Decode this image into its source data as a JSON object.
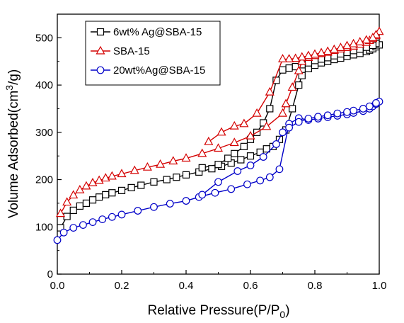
{
  "chart_data": {
    "type": "line",
    "xlabel_main": "Relative Pressure(P/P",
    "xlabel_sub": "0",
    "xlabel_close": ")",
    "ylabel_main": "Volume Adsorbed(cm",
    "ylabel_sup": "3",
    "ylabel_close": "/g)",
    "xlim": [
      0.0,
      1.0
    ],
    "ylim": [
      0,
      550
    ],
    "x_ticks": [
      "0.0",
      "0.2",
      "0.4",
      "0.6",
      "0.8",
      "1.0"
    ],
    "y_ticks": [
      "0",
      "100",
      "200",
      "300",
      "400",
      "500"
    ],
    "legend_position": "top-left",
    "series": [
      {
        "name": "6wt% Ag@SBA-15",
        "color": "#000000",
        "marker": "square",
        "x": [
          0.01,
          0.03,
          0.05,
          0.07,
          0.09,
          0.11,
          0.13,
          0.15,
          0.17,
          0.2,
          0.23,
          0.26,
          0.3,
          0.34,
          0.37,
          0.4,
          0.44,
          0.48,
          0.51,
          0.54,
          0.57,
          0.6,
          0.63,
          0.65,
          0.67,
          0.69,
          0.71,
          0.73,
          0.75,
          0.76,
          0.78,
          0.8,
          0.82,
          0.84,
          0.86,
          0.88,
          0.9,
          0.92,
          0.94,
          0.96,
          0.97,
          0.98,
          0.99,
          1.0,
          0.99,
          0.98,
          0.96,
          0.94,
          0.92,
          0.9,
          0.88,
          0.86,
          0.84,
          0.82,
          0.8,
          0.78,
          0.76,
          0.74,
          0.72,
          0.7,
          0.68,
          0.66,
          0.64,
          0.62,
          0.6,
          0.58,
          0.55,
          0.53,
          0.5,
          0.45
        ],
        "y": [
          98,
          122,
          135,
          144,
          150,
          157,
          163,
          168,
          172,
          177,
          183,
          188,
          195,
          200,
          205,
          210,
          216,
          223,
          228,
          235,
          242,
          250,
          258,
          265,
          270,
          285,
          305,
          350,
          400,
          420,
          435,
          442,
          447,
          450,
          454,
          457,
          461,
          464,
          467,
          471,
          474,
          477,
          481,
          485,
          488,
          484,
          480,
          476,
          473,
          469,
          466,
          462,
          458,
          455,
          452,
          447,
          443,
          439,
          436,
          432,
          410,
          350,
          320,
          300,
          285,
          270,
          255,
          245,
          232,
          225
        ]
      },
      {
        "name": "SBA-15",
        "color": "#d40000",
        "marker": "triangle",
        "x": [
          0.01,
          0.03,
          0.05,
          0.07,
          0.09,
          0.11,
          0.13,
          0.15,
          0.17,
          0.2,
          0.24,
          0.28,
          0.32,
          0.36,
          0.4,
          0.45,
          0.5,
          0.55,
          0.6,
          0.65,
          0.7,
          0.71,
          0.73,
          0.75,
          0.76,
          0.78,
          0.8,
          0.82,
          0.84,
          0.86,
          0.88,
          0.9,
          0.92,
          0.94,
          0.96,
          0.97,
          0.98,
          0.99,
          1.0,
          0.99,
          0.98,
          0.96,
          0.94,
          0.92,
          0.9,
          0.88,
          0.86,
          0.84,
          0.82,
          0.8,
          0.78,
          0.76,
          0.74,
          0.72,
          0.7,
          0.66,
          0.62,
          0.58,
          0.55,
          0.51,
          0.47
        ],
        "y": [
          128,
          152,
          167,
          178,
          186,
          193,
          198,
          203,
          207,
          212,
          219,
          226,
          232,
          239,
          245,
          255,
          266,
          278,
          292,
          312,
          340,
          360,
          395,
          430,
          450,
          458,
          462,
          466,
          469,
          473,
          476,
          479,
          482,
          486,
          490,
          494,
          498,
          504,
          513,
          506,
          500,
          495,
          491,
          487,
          483,
          479,
          475,
          471,
          468,
          465,
          462,
          459,
          456,
          455,
          455,
          385,
          340,
          318,
          313,
          300,
          280
        ]
      },
      {
        "name": "20wt%Ag@SBA-15",
        "color": "#0000c8",
        "marker": "circle",
        "x": [
          0.0,
          0.02,
          0.05,
          0.08,
          0.11,
          0.14,
          0.17,
          0.2,
          0.25,
          0.3,
          0.35,
          0.4,
          0.44,
          0.49,
          0.54,
          0.59,
          0.63,
          0.66,
          0.69,
          0.72,
          0.75,
          0.78,
          0.81,
          0.84,
          0.87,
          0.9,
          0.92,
          0.95,
          0.97,
          0.98,
          0.99,
          1.0,
          0.99,
          0.97,
          0.95,
          0.92,
          0.9,
          0.87,
          0.84,
          0.81,
          0.78,
          0.75,
          0.72,
          0.7,
          0.68,
          0.64,
          0.6,
          0.56,
          0.5,
          0.45
        ],
        "y": [
          72,
          88,
          98,
          104,
          110,
          116,
          121,
          126,
          134,
          142,
          149,
          155,
          163,
          172,
          180,
          190,
          198,
          205,
          222,
          318,
          330,
          326,
          329,
          332,
          335,
          338,
          341,
          345,
          350,
          355,
          360,
          365,
          362,
          355,
          350,
          346,
          343,
          340,
          336,
          333,
          329,
          322,
          310,
          300,
          275,
          248,
          230,
          218,
          195,
          168
        ]
      }
    ]
  }
}
